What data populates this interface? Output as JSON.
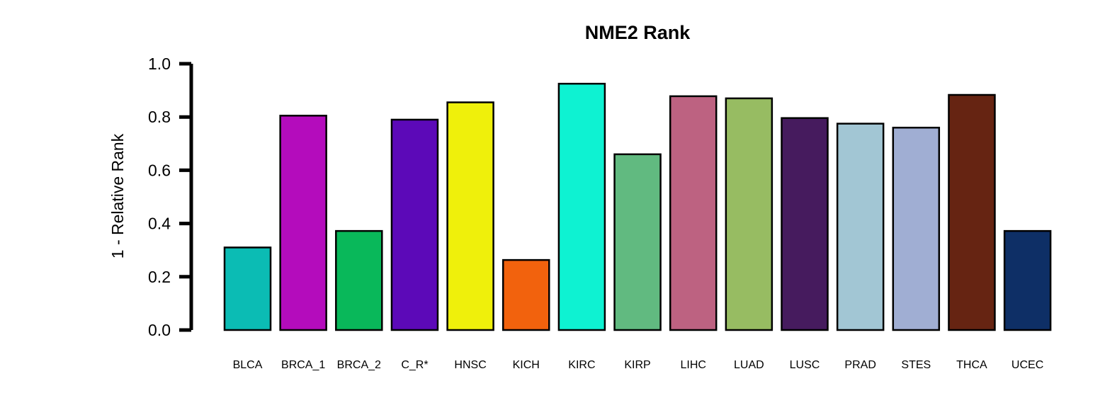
{
  "chart_data": {
    "type": "bar",
    "title": "NME2 Rank",
    "xlabel": "",
    "ylabel": "1 - Relative Rank",
    "ylim": [
      0,
      1.0
    ],
    "yticks": [
      "0.0",
      "0.2",
      "0.4",
      "0.6",
      "0.8",
      "1.0"
    ],
    "categories": [
      "BLCA",
      "BRCA_1",
      "BRCA_2",
      "C_R*",
      "HNSC",
      "KICH",
      "KIRC",
      "KIRP",
      "LIHC",
      "LUAD",
      "LUSC",
      "PRAD",
      "STES",
      "THCA",
      "UCEC"
    ],
    "values": [
      0.31,
      0.805,
      0.372,
      0.79,
      0.855,
      0.263,
      0.925,
      0.66,
      0.878,
      0.87,
      0.796,
      0.775,
      0.76,
      0.883,
      0.372
    ],
    "colors": [
      "#0bbcb4",
      "#b40cbc",
      "#09b85a",
      "#5c09b8",
      "#eff00b",
      "#f2620d",
      "#0ef2d2",
      "#61ba80",
      "#bd6281",
      "#97bc62",
      "#461b5e",
      "#a2c6d4",
      "#a0aed3",
      "#662412",
      "#0e2f66"
    ],
    "grid": false,
    "legend": "none"
  }
}
